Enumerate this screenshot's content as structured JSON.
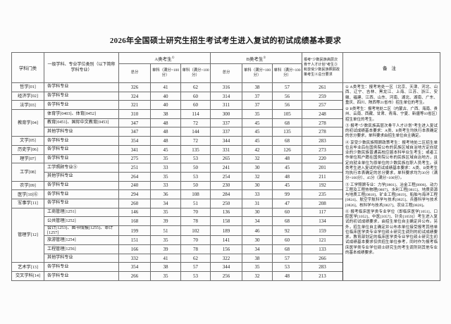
{
  "title": "2026年全国硕士研究生招生考试考生进入复试的初试成绩基本要求",
  "table": {
    "header": {
      "category": "学科门类",
      "specialty": "一级学科、专业学位类别（以下简称学科专业）",
      "group_a": "A类考生",
      "group_a_sup": "①",
      "group_b": "B类考生",
      "group_b_sup": "②",
      "total": "总分",
      "single_100": "单科（满分=100分）",
      "single_over_100": "单科（满分>100分）",
      "minority": "报考“少数民族高层次骨干人才计划”考生③和享受少数民族照顾政策考生④总分要求",
      "remark": "备注"
    },
    "groups": [
      {
        "category": "哲学[01]",
        "rows": [
          {
            "specialty": "各学科专业",
            "values": [
              326,
              41,
              62,
              316,
              38,
              57,
              261
            ]
          }
        ]
      },
      {
        "category": "经济学[02]",
        "rows": [
          {
            "specialty": "各学科专业",
            "values": [
              324,
              40,
              60,
              314,
              37,
              56,
              259
            ]
          }
        ]
      },
      {
        "category": "法学[03]",
        "rows": [
          {
            "specialty": "各学科专业",
            "values": [
              321,
              40,
              60,
              311,
              37,
              56,
              257
            ]
          }
        ]
      },
      {
        "category": "教育学[04]",
        "rows": [
          {
            "specialty": "体育学[0403]、体育[0452]",
            "values": [
              310,
              38,
              114,
              300,
              35,
              105,
              248
            ]
          },
          {
            "specialty": "教育[0451]、国际中文教育[0453]",
            "values": [
              347,
              48,
              72,
              337,
              45,
              68,
              278
            ]
          },
          {
            "specialty": "其他学科专业",
            "values": [
              347,
              48,
              144,
              337,
              45,
              135,
              278
            ]
          }
        ]
      },
      {
        "category": "文学[05]",
        "rows": [
          {
            "specialty": "各学科专业",
            "values": [
              354,
              48,
              72,
              344,
              45,
              68,
              283
            ]
          }
        ]
      },
      {
        "category": "历史学[06]",
        "rows": [
          {
            "specialty": "各学科专业",
            "values": [
              341,
              45,
              135,
              331,
              42,
              126,
              273
            ]
          }
        ]
      },
      {
        "category": "理学[07]",
        "rows": [
          {
            "specialty": "各学科专业",
            "values": [
              275,
              35,
              53,
              265,
              32,
              48,
              220
            ]
          }
        ]
      },
      {
        "category": "工学[08]",
        "rows": [
          {
            "specialty": "工学照顾专业⑤",
            "values": [
              251,
              33,
              50,
              241,
              30,
              45,
              201
            ]
          },
          {
            "specialty": "其他学科专业",
            "values": [
              264,
              35,
              53,
              254,
              32,
              48,
              211
            ]
          }
        ]
      },
      {
        "category": "农学[09]",
        "rows": [
          {
            "specialty": "各学科专业",
            "values": [
              240,
              33,
              50,
              230,
              30,
              45,
              192
            ]
          }
        ]
      },
      {
        "category": "医学[10]⑥",
        "rows": [
          {
            "specialty": "各学科专业",
            "values": [
              294,
              36,
              108,
              284,
              33,
              99,
              235
            ]
          }
        ]
      },
      {
        "category": "军事学[11]",
        "rows": [
          {
            "specialty": "各学科专业",
            "values": [
              260,
              34,
              51,
              250,
              31,
              47,
              208
            ]
          }
        ]
      },
      {
        "category": "管理学[12]",
        "rows": [
          {
            "specialty": "工商管理[1251]",
            "values": [
              146,
              35,
              70,
              136,
              30,
              60,
              117
            ]
          },
          {
            "specialty": "公共管理[1252]",
            "values": [
              168,
              39,
              78,
              158,
              34,
              68,
              134
            ]
          },
          {
            "specialty": "会计[1253]、图书情报[1255]、审计[1257]",
            "values": [
              199,
              51,
              102,
              189,
              46,
              92,
              159
            ]
          },
          {
            "specialty": "旅游管理[1254]",
            "values": [
              151,
              35,
              70,
              141,
              30,
              60,
              121
            ]
          },
          {
            "specialty": "工程管理[1256]",
            "values": [
              166,
              39,
              78,
              156,
              34,
              68,
              133
            ]
          },
          {
            "specialty": "其他学科专业",
            "values": [
              332,
              41,
              62,
              322,
              38,
              57,
              266
            ]
          }
        ]
      },
      {
        "category": "艺术学[13]",
        "rows": [
          {
            "specialty": "各学科专业",
            "values": [
              354,
              38,
              57,
              344,
              35,
              53,
              283
            ]
          }
        ]
      },
      {
        "category": "交叉学科[14]",
        "rows": [
          {
            "specialty": "各学科专业",
            "values": [
              266,
              35,
              53,
              256,
              32,
              48,
              213
            ]
          }
        ]
      }
    ],
    "remarks": [
      "① A类考生：报考地处一区（北京、天津、河北、山西、辽宁、吉林、黑龙江、上海、江苏、浙江、安徽、福建、江西、山东、河南、湖北、湖南、广东、重庆、四川、陕西等21省市）招生单位的考生。",
      "② B类考生：报考地处二区（内蒙古、广西、海南、贵州、云南、西藏、甘肃、青海、宁夏、新疆等10省区）招生单位的考生。",
      "③ 报考“少数民族高层次骨干人才计划”考生进入复试的初试成绩基本要求：A类、B类考生均执行本表确定的总分要求，单科要求由招生单位自主确定。",
      "④ 享受少数民族照顾政策考生：报考地处二区招生单位且毕业后在国务院公布的民族区域自治地方定向就业的少数民族普通高校应届本科毕业生考生；或者工作单位和户籍在国务院公布的民族区域自治地方，且定向就业单位为原单位的少数民族在职人员考生。该类考生进入复试的初试成绩基本要求：A类、B类考生均执行本表确定的总分要求，单科要求均为30分（满分=100分）、45分（满分>100分）。",
      "⑤ 工学照顾专业：力学[0801]、冶金工程[0806]、动力工程及工程热物理[0807]、水利工程[0815]、地质资源与地质工程[0818]、矿业工程[0819]、船舶与海洋工程[0824]、航空宇航科学与技术[0825]、兵器科学与技术[0826]、核科学与技术[0827]、农业工程[0828]。",
      "⑥ 报考临床医学类专业学位（即临床医学[1051]、口腔医学[1052]、中医[1057]、针灸[1059]）考生进入复试的初试成绩要求，由招生单位自主确定并公布。另外，招生单位自主确定并公布本单位接受报考其他单位临床医学类专业学位硕士研究生调剂的初试成绩要求。教育部划定的临床医学类专业学位硕士研究生初试成绩基本要求仅供招生单位参考，同时作为报考临床医学类专业学位硕士研究生的考生调剂到其他专业的基本成绩要求。"
    ]
  }
}
